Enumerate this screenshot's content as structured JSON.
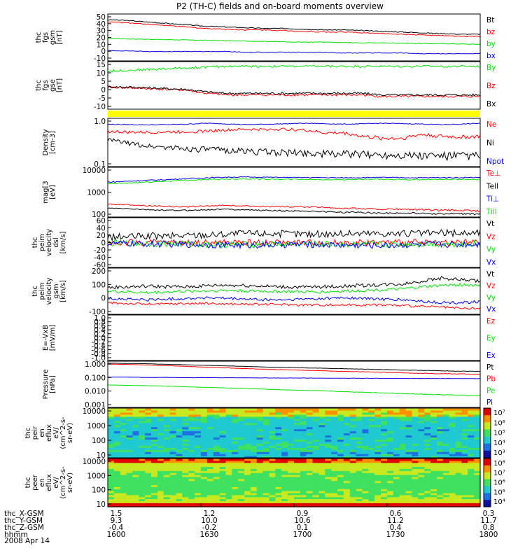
{
  "colors": {
    "black": "#000000",
    "red": "#ff0000",
    "green": "#00e000",
    "blue": "#0000e0",
    "yellow": "#ffff00"
  },
  "chart_data": {
    "type": "line",
    "title": "P2 (TH-C) fields and on-board moments overview",
    "date_label": "2008 Apr 14",
    "xaxis": {
      "rows": [
        {
          "label": "thc_X-GSM",
          "values": [
            "1.5",
            "1.2",
            "0.9",
            "0.6",
            "0.3"
          ]
        },
        {
          "label": "thc_Y-GSM",
          "values": [
            "9.3",
            "10.0",
            "10.6",
            "11.2",
            "11.7"
          ]
        },
        {
          "label": "thc_Z-GSM",
          "values": [
            "-0.4",
            "-0.2",
            "0.1",
            "0.4",
            "0.8"
          ]
        },
        {
          "label": "hhmm",
          "values": [
            "1600",
            "1630",
            "1700",
            "1730",
            "1800"
          ]
        }
      ]
    },
    "panels": [
      {
        "id": "fgs_gsm",
        "ylabel": [
          "thc",
          "fgs",
          "gsm",
          "[nT]"
        ],
        "scale": "linear",
        "ylim": [
          -15,
          50
        ],
        "ticks": [
          "50",
          "40",
          "30",
          "20",
          "10",
          "0",
          "-10"
        ],
        "series": [
          {
            "name": "Bt",
            "color": "#000000",
            "values": [
              42,
              41,
              39,
              37,
              35,
              33,
              32,
              31,
              30,
              30,
              29,
              28,
              28,
              27,
              26,
              25,
              24,
              23,
              22,
              22
            ],
            "noise": 0.6
          },
          {
            "name": "bz",
            "color": "#ff0000",
            "values": [
              39,
              38,
              36,
              34,
              32,
              30,
              29,
              28,
              28,
              27,
              26,
              25,
              25,
              24,
              23,
              22,
              21,
              20,
              19,
              19
            ],
            "noise": 0.6
          },
          {
            "name": "by",
            "color": "#00e000",
            "values": [
              16,
              15.5,
              15,
              14.5,
              14,
              13.5,
              13,
              12.5,
              12,
              11.5,
              11,
              11,
              10.5,
              10,
              10,
              9.5,
              9,
              9,
              8.5,
              8
            ],
            "noise": 0.4
          },
          {
            "name": "bx",
            "color": "#0000e0",
            "values": [
              -1,
              -1,
              -2,
              -2,
              -2,
              -2,
              -2,
              -3,
              -3,
              -3,
              -3,
              -3,
              -4,
              -4,
              -4,
              -4,
              -5,
              -5,
              -5,
              -5
            ],
            "noise": 0.4
          }
        ]
      },
      {
        "id": "fgs_gse",
        "ylabel": [
          "thc",
          "fgs",
          "gse",
          "[nT]"
        ],
        "scale": "linear",
        "ylim": [
          -15,
          15
        ],
        "ticks": [
          "15",
          "10",
          "5",
          "0",
          "-5",
          "-10"
        ],
        "series": [
          {
            "name": "By",
            "color": "#00e000",
            "values": [
              9,
              9.5,
              10,
              10.5,
              11,
              11.5,
              12,
              12,
              12,
              12,
              12,
              12,
              12,
              12,
              12,
              12,
              12,
              12,
              12,
              12
            ],
            "noise": 0.7
          },
          {
            "name": "Bz",
            "color": "#ff0000",
            "values": [
              -1,
              -1.5,
              -2,
              -2.5,
              -3,
              -5,
              -6,
              -6,
              -6,
              -6,
              -6,
              -6,
              -6,
              -6,
              -7,
              -7,
              -7,
              -7,
              -7,
              -7
            ],
            "noise": 0.7
          },
          {
            "name": "Bx",
            "color": "#000000",
            "values": [
              -1,
              -1,
              -1.5,
              -2,
              -2.5,
              -4,
              -5,
              -5,
              -5,
              -5,
              -5,
              -5,
              -5,
              -5,
              -6,
              -6,
              -6,
              -6,
              -6,
              -6
            ],
            "noise": 0.7
          }
        ]
      },
      {
        "id": "density",
        "ylabel": [
          "Density",
          "[cm-3]"
        ],
        "scale": "log",
        "ylim": [
          0.1,
          1.3
        ],
        "ticks": [
          "1.0",
          "0.1"
        ],
        "series": [
          {
            "name": "Ne",
            "color": "#ff0000",
            "values": [
              0.65,
              0.62,
              0.62,
              0.63,
              0.64,
              0.66,
              0.7,
              0.72,
              0.72,
              0.73,
              0.7,
              0.6,
              0.6,
              0.5,
              0.45,
              0.45,
              0.55,
              0.5,
              0.48,
              0.5
            ],
            "noise": 0.05
          },
          {
            "name": "Ni",
            "color": "#000000",
            "values": [
              0.42,
              0.35,
              0.3,
              0.28,
              0.26,
              0.25,
              0.24,
              0.23,
              0.22,
              0.21,
              0.21,
              0.2,
              0.2,
              0.19,
              0.19,
              0.19,
              0.18,
              0.18,
              0.18,
              0.18
            ],
            "noise": 0.04
          },
          {
            "name": "Npot",
            "color": "#0000e0",
            "values": [
              0.95,
              0.93,
              0.92,
              0.93,
              0.95,
              1.0,
              0.97,
              0.93,
              0.95,
              0.97,
              1.0,
              0.98,
              0.95,
              0.97,
              1.0,
              0.98,
              0.96,
              0.93,
              0.95,
              1.0
            ],
            "noise": 0.02
          }
        ]
      },
      {
        "id": "temperature",
        "ylabel": [
          "mag[3",
          "[eV]"
        ],
        "scale": "log",
        "ylim": [
          80,
          14000
        ],
        "ticks": [
          "10000",
          "1000",
          "100"
        ],
        "series": [
          {
            "name": "Te⊥",
            "color": "#ff0000",
            "values": [
              300,
              290,
              260,
              240,
              230,
              250,
              270,
              250,
              240,
              230,
              230,
              220,
              200,
              190,
              180,
              180,
              170,
              160,
              160,
              150
            ],
            "noise": 15
          },
          {
            "name": "Tell",
            "color": "#000000",
            "values": [
              200,
              190,
              170,
              160,
              160,
              170,
              180,
              170,
              160,
              150,
              150,
              140,
              130,
              130,
              120,
              120,
              120,
              110,
              110,
              110
            ],
            "noise": 10
          },
          {
            "name": "Ti⊥",
            "color": "#0000e0",
            "values": [
              3000,
              3300,
              3600,
              3900,
              4300,
              4700,
              5000,
              5100,
              5000,
              4900,
              4800,
              4800,
              4700,
              4800,
              4900,
              4800,
              4700,
              4800,
              4800,
              4900
            ],
            "noise": 200
          },
          {
            "name": "Till",
            "color": "#00e000",
            "values": [
              2500,
              2700,
              3000,
              3300,
              3600,
              3900,
              4100,
              4200,
              4100,
              4000,
              4000,
              3900,
              3900,
              4000,
              4000,
              3900,
              3900,
              4000,
              4000,
              4000
            ],
            "noise": 200
          }
        ]
      },
      {
        "id": "velocity_dsl",
        "ylabel": [
          "thc",
          "peim",
          "velocity",
          "dsl",
          "[km/s]"
        ],
        "scale": "linear",
        "ylim": [
          -70,
          70
        ],
        "ticks": [
          "60",
          "40",
          "20",
          "0",
          "-20",
          "-40",
          "-60"
        ],
        "series": [
          {
            "name": "Vt",
            "color": "#000000",
            "values": [
              15,
              16,
              18,
              18,
              20,
              22,
              24,
              26,
              26,
              25,
              24,
              24,
              25,
              26,
              26,
              25,
              26,
              27,
              26,
              28
            ],
            "noise": 10
          },
          {
            "name": "Vz",
            "color": "#ff0000",
            "values": [
              0,
              0,
              0,
              0,
              0,
              0,
              0,
              0,
              0,
              0,
              0,
              0,
              0,
              0,
              0,
              0,
              0,
              0,
              0,
              0
            ],
            "noise": 9
          },
          {
            "name": "Vy",
            "color": "#00e000",
            "values": [
              -2,
              -2,
              -3,
              -3,
              -4,
              -5,
              -6,
              -6,
              -5,
              -5,
              -4,
              -4,
              -5,
              -6,
              -6,
              -5,
              -4,
              -4,
              -3,
              -3
            ],
            "noise": 9
          },
          {
            "name": "Vx",
            "color": "#0000e0",
            "values": [
              -3,
              -3,
              -4,
              -5,
              -5,
              -6,
              -7,
              -8,
              -7,
              -6,
              -5,
              -6,
              -7,
              -8,
              -8,
              -7,
              -6,
              -5,
              -5,
              -4
            ],
            "noise": 9
          }
        ]
      },
      {
        "id": "velocity_gsm",
        "ylabel": [
          "thc",
          "peim",
          "velocity",
          "gsm",
          "[km/s]"
        ],
        "scale": "linear",
        "ylim": [
          -110,
          210
        ],
        "ticks": [
          "200",
          "100",
          "0",
          "-100"
        ],
        "series": [
          {
            "name": "Vt",
            "color": "#000000",
            "values": [
              75,
              80,
              85,
              82,
              80,
              88,
              92,
              90,
              85,
              80,
              78,
              80,
              85,
              90,
              95,
              100,
              120,
              140,
              130,
              120
            ],
            "noise": 12
          },
          {
            "name": "Vz",
            "color": "#ff0000",
            "values": [
              -30,
              -35,
              -40,
              -38,
              -35,
              -35,
              -38,
              -40,
              -40,
              -42,
              -45,
              -45,
              -45,
              -45,
              -45,
              -50,
              -55,
              -60,
              -70,
              -70
            ],
            "noise": 8
          },
          {
            "name": "Vy",
            "color": "#00e000",
            "values": [
              50,
              45,
              40,
              45,
              50,
              52,
              55,
              52,
              50,
              48,
              45,
              45,
              50,
              55,
              60,
              65,
              80,
              90,
              95,
              90
            ],
            "noise": 10
          },
          {
            "name": "Vx",
            "color": "#0000e0",
            "values": [
              0,
              -5,
              -10,
              -5,
              0,
              5,
              0,
              -5,
              -10,
              -10,
              -5,
              0,
              5,
              0,
              -5,
              -10,
              -20,
              -30,
              -30,
              -20
            ],
            "noise": 10
          }
        ]
      },
      {
        "id": "efield",
        "ylabel": [
          "E=-VxB",
          "[mV/m]"
        ],
        "scale": "linear",
        "ylim": [
          -1,
          1
        ],
        "ticks": [
          "1.0",
          "0.8",
          "0.6",
          "0.4",
          "0.2",
          "0.0",
          "-0.2",
          "-0.4",
          "-0.6",
          "-0.8",
          "-1.0"
        ],
        "series": [
          {
            "name": "Ez",
            "color": "#ff0000",
            "values": []
          },
          {
            "name": "Ey",
            "color": "#00e000",
            "values": []
          },
          {
            "name": "Ex",
            "color": "#0000e0",
            "values": []
          }
        ]
      },
      {
        "id": "pressure",
        "ylabel": [
          "Pressure",
          "[nPa]"
        ],
        "scale": "log",
        "ylim": [
          0.001,
          1.5
        ],
        "ticks": [
          "1.000",
          "0.100",
          "0.010",
          "0.001"
        ],
        "series": [
          {
            "name": "Pt",
            "color": "#000000",
            "values": [
              1.1,
              1.05,
              1.0,
              0.92,
              0.85,
              0.78,
              0.72,
              0.66,
              0.6,
              0.56,
              0.52,
              0.49,
              0.46,
              0.43,
              0.4,
              0.37,
              0.35,
              0.33,
              0.31,
              0.3
            ],
            "noise": 0.01
          },
          {
            "name": "Pb",
            "color": "#ff0000",
            "values": [
              0.95,
              0.9,
              0.82,
              0.74,
              0.66,
              0.58,
              0.52,
              0.47,
              0.42,
              0.39,
              0.36,
              0.33,
              0.3,
              0.28,
              0.26,
              0.24,
              0.22,
              0.21,
              0.2,
              0.19
            ],
            "noise": 0.01
          },
          {
            "name": "Pe",
            "color": "#00e000",
            "values": [
              0.035,
              0.033,
              0.031,
              0.029,
              0.026,
              0.024,
              0.022,
              0.02,
              0.018,
              0.016,
              0.015,
              0.014,
              0.012,
              0.011,
              0.01,
              0.009,
              0.008,
              0.0075,
              0.007,
              0.0065
            ],
            "noise": 0.0003
          },
          {
            "name": "Pi",
            "color": "#0000e0",
            "values": [
              0.12,
              0.12,
              0.115,
              0.115,
              0.11,
              0.112,
              0.11,
              0.108,
              0.106,
              0.105,
              0.104,
              0.103,
              0.102,
              0.101,
              0.1,
              0.099,
              0.098,
              0.097,
              0.097,
              0.096
            ],
            "noise": 0.002
          }
        ]
      },
      {
        "id": "ion_spectrogram",
        "ylabel": [
          "thc",
          "peir",
          "en",
          "eflux",
          "eV/",
          "(cm^2-s-",
          "sr-eV)"
        ],
        "scale": "log",
        "type": "heatmap",
        "ylim": [
          8,
          20000
        ],
        "ticks": [
          "10000",
          "1000",
          "100",
          "10"
        ],
        "colorbar": {
          "ticks": [
            "10⁷",
            "10⁶",
            "10⁵",
            "10⁴",
            "10³"
          ]
        }
      },
      {
        "id": "electron_spectrogram",
        "ylabel": [
          "thc",
          "peer",
          "en",
          "eflux",
          "eV/",
          "(cm^2-s-",
          "sr-eV)"
        ],
        "scale": "log",
        "type": "heatmap",
        "ylim": [
          8,
          30000
        ],
        "ticks": [
          "10000",
          "1000",
          "100",
          "10"
        ],
        "colorbar": {
          "ticks": [
            "10⁸",
            "10⁷",
            "10⁶",
            "10⁵",
            "10⁴"
          ]
        }
      }
    ]
  }
}
